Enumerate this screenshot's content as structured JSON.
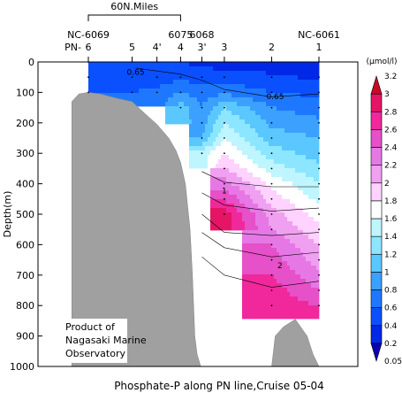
{
  "chart_data": {
    "type": "heatmap",
    "title": "Phosphate-P along PN line,Cruise 05-04",
    "ylabel": "Depth(m)",
    "ylim": [
      1000,
      0
    ],
    "yticks": [
      0,
      100,
      200,
      300,
      400,
      500,
      600,
      700,
      800,
      900,
      1000
    ],
    "stations": [
      {
        "label": "6",
        "km": 0
      },
      {
        "label": "5",
        "km": 37
      },
      {
        "label": "4'",
        "km": 58
      },
      {
        "label": "4",
        "km": 78
      },
      {
        "label": "3'",
        "km": 96
      },
      {
        "label": "3",
        "km": 115
      },
      {
        "label": "2",
        "km": 155
      },
      {
        "label": "1",
        "km": 195
      }
    ],
    "station_prefix": "PN-",
    "top_station_labels": [
      {
        "text": "NC-6069",
        "km": 0
      },
      {
        "text": "6075",
        "km": 78
      },
      {
        "text": "6068",
        "km": 96
      },
      {
        "text": "NC-6061",
        "km": 195
      }
    ],
    "scale_bar": {
      "label": "60N.Miles",
      "km_start": 0,
      "km_end": 78
    },
    "colorbar": {
      "unit": "(μmol/l)",
      "levels": [
        0.05,
        0.2,
        0.4,
        0.6,
        0.8,
        1,
        1.2,
        1.4,
        1.6,
        1.8,
        2,
        2.2,
        2.4,
        2.6,
        2.8,
        3,
        3.2
      ],
      "colors": [
        "#0a00b4",
        "#0028e6",
        "#0a50ff",
        "#1e78ff",
        "#3ca0ff",
        "#5ac8ff",
        "#8ce6ff",
        "#bef5ff",
        "#ffffff",
        "#ffd2ff",
        "#f0a0f0",
        "#e678e6",
        "#e650c8",
        "#f0289b",
        "#e61464",
        "#c80a28"
      ]
    },
    "contour_labels": [
      {
        "text": "0.65",
        "km": 40,
        "depth": 30
      },
      {
        "text": "0.65",
        "km": 158,
        "depth": 110
      },
      {
        "text": "1",
        "km": 115,
        "depth": 420
      },
      {
        "text": "2",
        "km": 162,
        "depth": 665
      }
    ],
    "profiles": {
      "depths": [
        0,
        50,
        100,
        150,
        200,
        250,
        300,
        350,
        400,
        450,
        500,
        550,
        600,
        650,
        700,
        750,
        800,
        850,
        900
      ],
      "values": [
        [
          0.4,
          0.5,
          0.6
        ],
        [
          0.4,
          0.5,
          0.6
        ],
        [
          0.4,
          0.5,
          0.65
        ],
        [
          0.4,
          0.55,
          0.8,
          1.1
        ],
        [
          0.35,
          0.5,
          0.7,
          0.8,
          0.9,
          1.0,
          1.5
        ],
        [
          0.3,
          0.5,
          0.75,
          1.2,
          1.4,
          1.6,
          1.8,
          2.0,
          2.3,
          2.6,
          2.9
        ],
        [
          0.25,
          0.45,
          0.6,
          0.8,
          0.95,
          1.1,
          1.3,
          1.5,
          1.75,
          1.9,
          2.1,
          2.2,
          2.4,
          2.5,
          2.6,
          2.7,
          2.7
        ],
        [
          0.2,
          0.35,
          0.55,
          0.7,
          0.85,
          1.0,
          1.1,
          1.25,
          1.4,
          1.55,
          1.7,
          1.85,
          2.0,
          2.1,
          2.25,
          2.4,
          2.6
        ]
      ],
      "note_text": [
        "Product of",
        "Nagasaki Marine",
        "Observatory"
      ]
    }
  }
}
